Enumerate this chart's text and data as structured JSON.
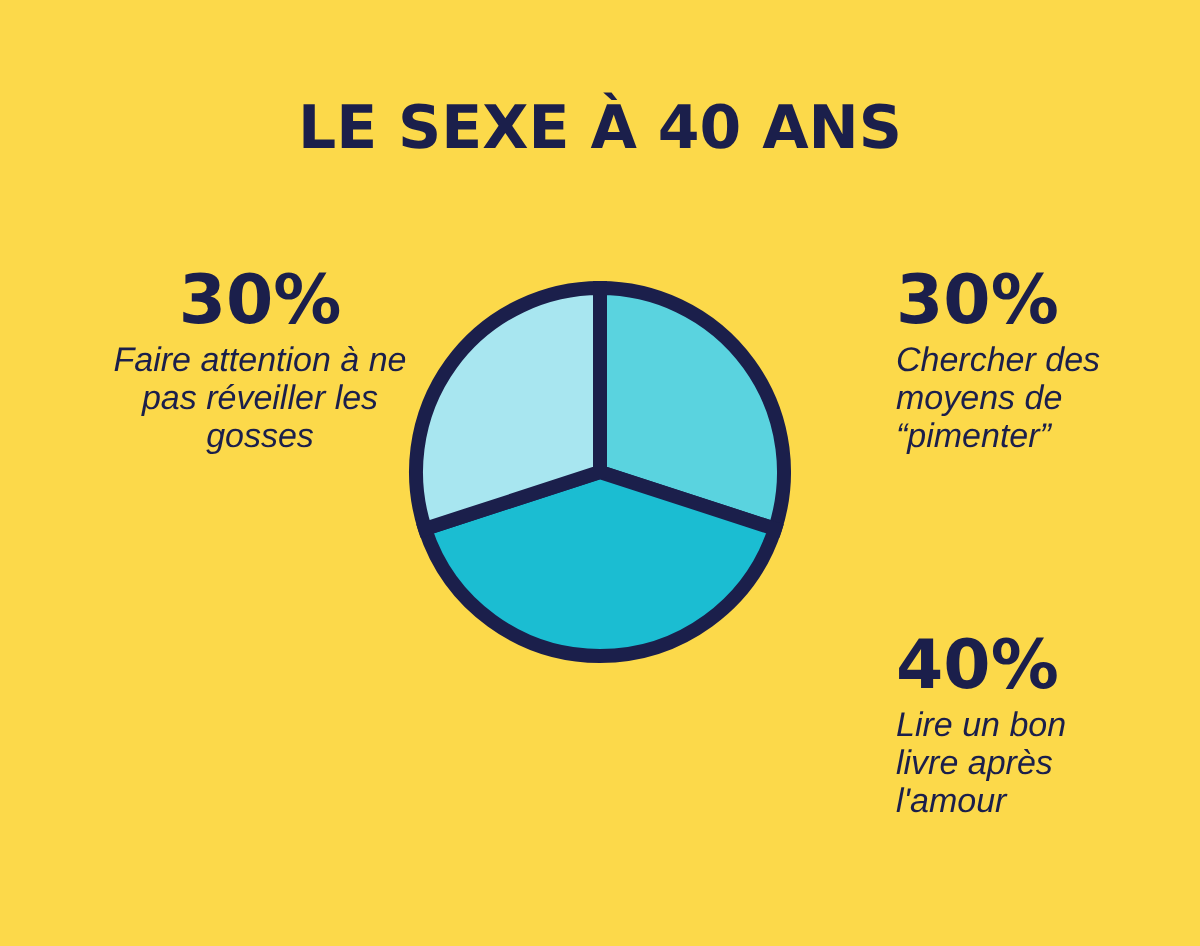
{
  "chart_data": {
    "type": "pie",
    "title": "LE SEXE À 40 ANS",
    "categories": [
      "Chercher des moyens de “pimenter”",
      "Lire un bon livre après l'amour",
      "Faire attention à ne pas réveiller les gosses"
    ],
    "values": [
      30,
      40,
      30
    ],
    "colors": [
      "#5ad3df",
      "#1bbdd2",
      "#a8e6f0"
    ],
    "value_labels": [
      "30%",
      "40%",
      "30%"
    ]
  }
}
